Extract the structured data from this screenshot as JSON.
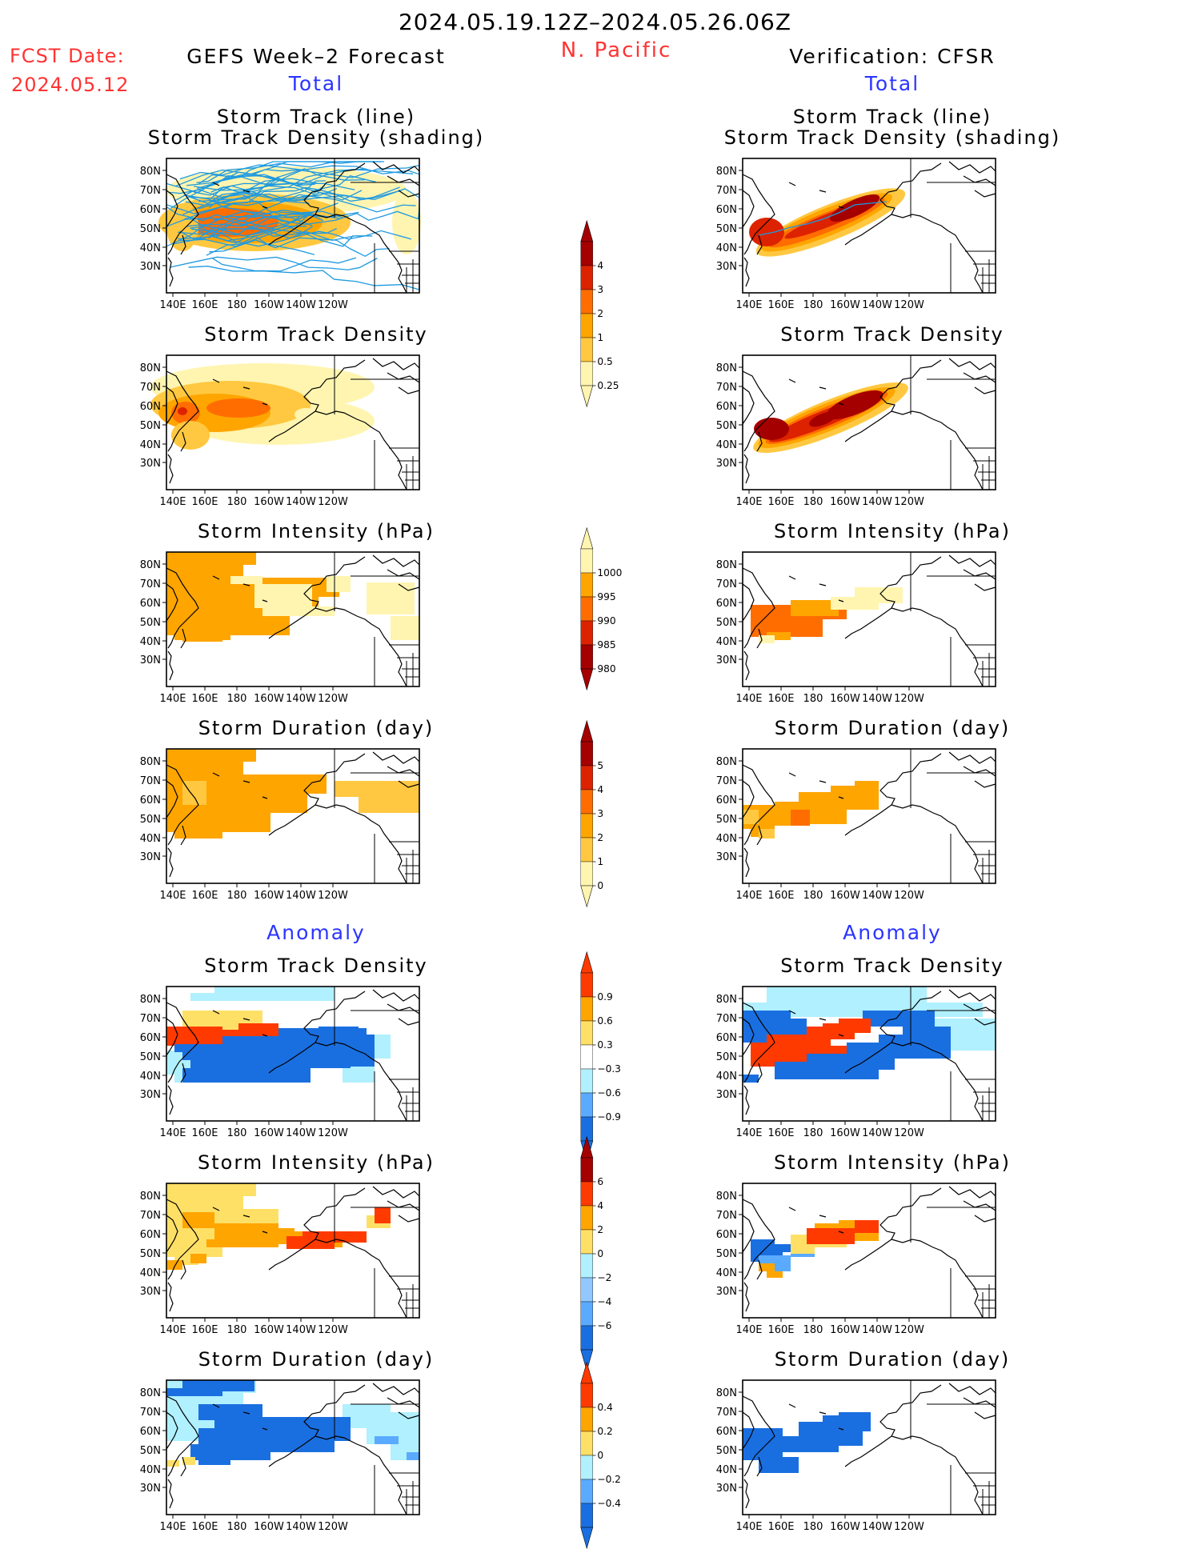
{
  "header": {
    "date_range": "2024.05.19.12Z–2024.05.26.06Z",
    "region": "N. Pacific",
    "fcst_label": "FCST Date:",
    "fcst_date": "2024.05.12",
    "left_title": "GEFS Week–2 Forecast",
    "right_title": "Verification: CFSR",
    "total_label": "Total",
    "anomaly_label": "Anomaly"
  },
  "titles": {
    "track_line": "Storm Track (line)",
    "track_shading": "Storm Track Density (shading)",
    "density": "Storm Track Density",
    "intensity": "Storm Intensity (hPa)",
    "duration": "Storm Duration (day)"
  },
  "map_axes": {
    "lat_labels": [
      "80N",
      "70N",
      "60N",
      "50N",
      "40N",
      "30N"
    ],
    "lon_labels": [
      "140E",
      "160E",
      "180",
      "160W",
      "140W",
      "120W"
    ]
  },
  "colorbars": {
    "density": {
      "labels": [
        "4",
        "3",
        "2",
        "1",
        "0.5",
        "0.25"
      ],
      "colors": [
        "#a50000",
        "#dd2200",
        "#ff6d00",
        "#ffa500",
        "#ffc840",
        "#fff5b0"
      ]
    },
    "intensity": {
      "labels": [
        "1000",
        "995",
        "990",
        "985",
        "980"
      ],
      "colors": [
        "#fff5b0",
        "#ffa500",
        "#ff6d00",
        "#dd2200",
        "#a50000"
      ]
    },
    "duration": {
      "labels": [
        "5",
        "4",
        "3",
        "2",
        "1",
        "0"
      ],
      "colors": [
        "#a50000",
        "#dd2200",
        "#ff6d00",
        "#ffa500",
        "#ffc840",
        "#fff5b0"
      ]
    },
    "anom_density": {
      "labels": [
        "0.9",
        "0.6",
        "0.3",
        "−0.3",
        "−0.6",
        "−0.9"
      ],
      "colors": [
        "#ff3a00",
        "#ffa500",
        "#ffe066",
        "#ffffff",
        "#b0f0ff",
        "#5aabff",
        "#1a6fe0"
      ]
    },
    "anom_intensity": {
      "labels": [
        "6",
        "4",
        "2",
        "0",
        "−2",
        "−4",
        "−6"
      ],
      "colors": [
        "#a50000",
        "#ff3a00",
        "#ffa500",
        "#ffe066",
        "#b0f0ff",
        "#90c8ff",
        "#5aabff",
        "#1a6fe0"
      ]
    },
    "anom_duration": {
      "labels": [
        "0.4",
        "0.2",
        "0",
        "−0.2",
        "−0.4"
      ],
      "colors": [
        "#ff3a00",
        "#ffa500",
        "#ffe066",
        "#b0f0ff",
        "#5aabff",
        "#1a6fe0"
      ]
    }
  },
  "colors": {
    "track_line": "#1e9ae0",
    "title_blue": "#2b35ff",
    "header_red": "#ff3333"
  }
}
